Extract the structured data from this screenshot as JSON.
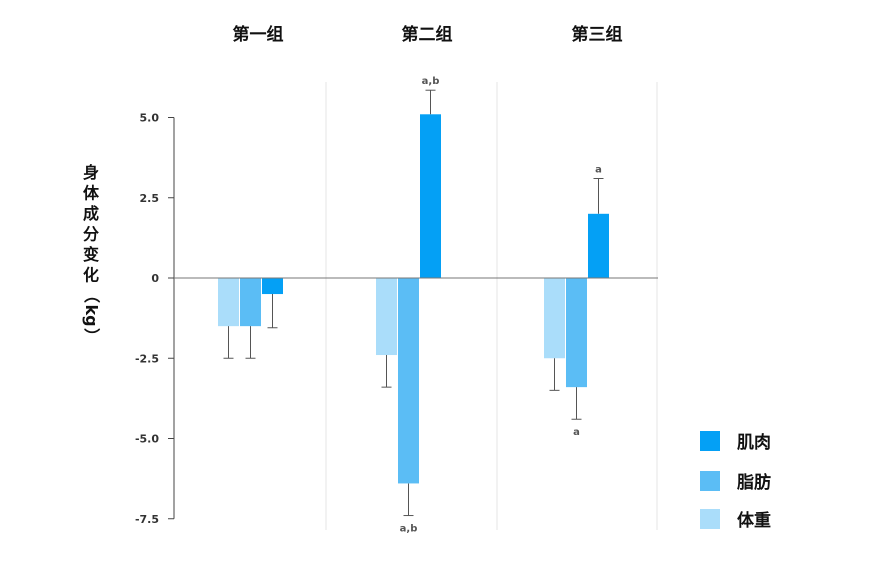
{
  "chart_data": {
    "type": "bar",
    "title": "",
    "xlabel": "",
    "ylabel": "身体成分变化（kg）",
    "ylabel_chars": [
      "身",
      "体",
      "成",
      "分",
      "变",
      "化",
      "（",
      "kg",
      "）"
    ],
    "ylim": [
      -7.5,
      5.0
    ],
    "yticks": [
      5.0,
      2.5,
      0,
      -2.5,
      -5.0,
      -7.5
    ],
    "ytick_labels": [
      "5.0",
      "2.5",
      "0",
      "-2.5",
      "-5.0",
      "-7.5"
    ],
    "grid": false,
    "legend_position": "bottom-right",
    "categories": [
      "第一组",
      "第二组",
      "第三组"
    ],
    "series": [
      {
        "name": "体重",
        "color": "#aaddfa",
        "values": [
          -1.5,
          -2.4,
          -2.5
        ],
        "errors": [
          1.0,
          1.0,
          1.0
        ],
        "annotations": [
          "",
          "",
          ""
        ]
      },
      {
        "name": "脂肪",
        "color": "#5bbdf5",
        "values": [
          -1.5,
          -6.4,
          -3.4
        ],
        "errors": [
          1.0,
          1.0,
          1.0
        ],
        "annotations": [
          "",
          "a,b",
          "a"
        ]
      },
      {
        "name": "肌肉",
        "color": "#04a0f5",
        "values": [
          -0.5,
          5.1,
          2.0
        ],
        "errors": [
          1.05,
          0.75,
          1.1
        ],
        "annotations": [
          "",
          "a,b",
          "a"
        ]
      }
    ],
    "legend_order": [
      "肌肉",
      "脂肪",
      "体重"
    ]
  }
}
